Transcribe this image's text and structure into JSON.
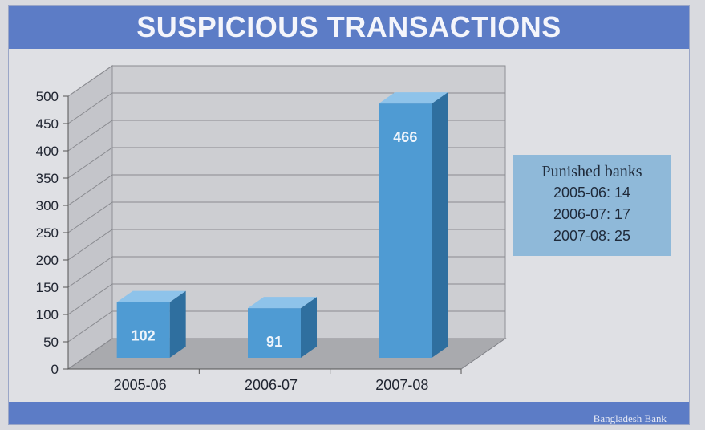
{
  "header": {
    "title": "SUSPICIOUS TRANSACTIONS"
  },
  "footer": {
    "source": "Bangladesh Bank"
  },
  "legend": {
    "title": "Punished banks",
    "lines": [
      "2005-06: 14",
      "2006-07: 17",
      "2007-08: 25"
    ]
  },
  "colors": {
    "bar_front": "#4f9bd3",
    "bar_side": "#2f6f9f",
    "bar_top": "#8ec3ea",
    "header": "#5c7cc6",
    "legend_bg": "#8fb9d9"
  },
  "chart_data": {
    "type": "bar",
    "title": "SUSPICIOUS TRANSACTIONS",
    "categories": [
      "2005-06",
      "2006-07",
      "2007-08"
    ],
    "values": [
      102,
      91,
      466
    ],
    "data_labels": [
      "102",
      "91",
      "466"
    ],
    "ylim": [
      0,
      500
    ],
    "yticks": [
      0,
      50,
      100,
      150,
      200,
      250,
      300,
      350,
      400,
      450,
      500
    ],
    "grid": true,
    "style": "3d",
    "xlabel": "",
    "ylabel": ""
  }
}
